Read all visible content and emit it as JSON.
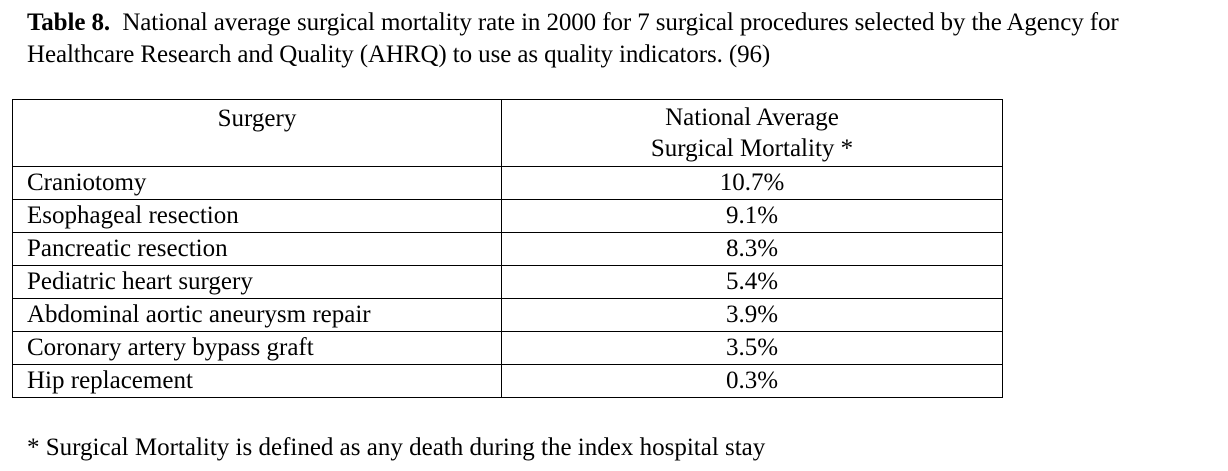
{
  "caption": {
    "label": "Table 8.",
    "text": "National average surgical mortality rate in 2000 for 7 surgical procedures selected by the Agency for Healthcare Research and Quality (AHRQ) to use as quality indicators. (96)"
  },
  "table": {
    "headers": {
      "surgery": "Surgery",
      "mortality_line1": "National Average",
      "mortality_line2": "Surgical Mortality *"
    },
    "rows": [
      {
        "surgery": "Craniotomy",
        "mortality": "10.7%"
      },
      {
        "surgery": "Esophageal resection",
        "mortality": "9.1%"
      },
      {
        "surgery": "Pancreatic resection",
        "mortality": "8.3%"
      },
      {
        "surgery": "Pediatric heart surgery",
        "mortality": "5.4%"
      },
      {
        "surgery": "Abdominal aortic aneurysm repair",
        "mortality": "3.9%"
      },
      {
        "surgery": "Coronary artery bypass graft",
        "mortality": "3.5%"
      },
      {
        "surgery": "Hip replacement",
        "mortality": "0.3%"
      }
    ]
  },
  "footnote": "* Surgical Mortality is defined as any death during the index hospital stay"
}
